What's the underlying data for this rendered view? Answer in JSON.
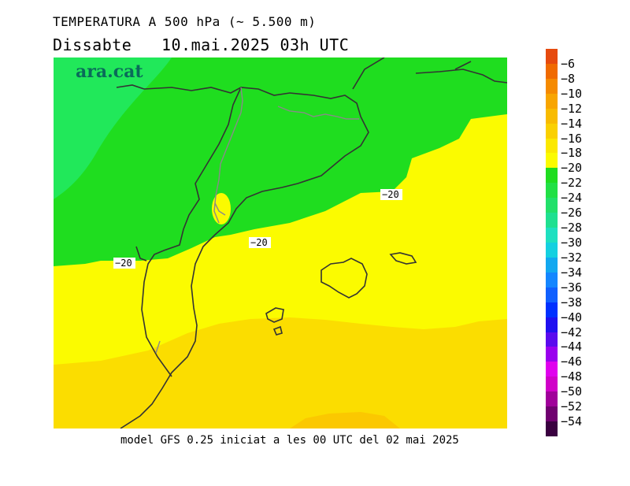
{
  "header": {
    "title": "TEMPERATURA A 500 hPa (~ 5.500 m)",
    "subtitle": "Dissabte   10.mai.2025 03h UTC"
  },
  "map": {
    "logo": "ara.cat",
    "contour_label": "−20",
    "fill_colors": {
      "green": "#1fdd1f",
      "light_green": "#21e85a",
      "yellow": "#fbfb00",
      "gold": "#fbdd00",
      "deep_gold": "#fbc800"
    },
    "coast_color": "#333333",
    "border_color": "#8a8a8a"
  },
  "footer": {
    "text": "model GFS 0.25 iniciat a les 00 UTC del 02 mai 2025"
  },
  "colorbar": {
    "labels": [
      "−6",
      "−8",
      "−10",
      "−12",
      "−14",
      "−16",
      "−18",
      "−20",
      "−22",
      "−24",
      "−26",
      "−28",
      "−30",
      "−32",
      "−34",
      "−36",
      "−38",
      "−40",
      "−42",
      "−44",
      "−46",
      "−48",
      "−50",
      "−52",
      "−54"
    ],
    "colors": [
      "#e64a0e",
      "#f06a00",
      "#f58a00",
      "#f8a500",
      "#f8bb00",
      "#fad000",
      "#fbe800",
      "#fbfb00",
      "#1fdd1f",
      "#21e045",
      "#22e06a",
      "#1fe090",
      "#1ee0c0",
      "#14d0e0",
      "#12a8f0",
      "#1486ff",
      "#1060ff",
      "#0030ff",
      "#2010f0",
      "#5a0aee",
      "#9a00ee",
      "#e000ee",
      "#d000c8",
      "#a0009a",
      "#700070",
      "#3a0040"
    ]
  }
}
